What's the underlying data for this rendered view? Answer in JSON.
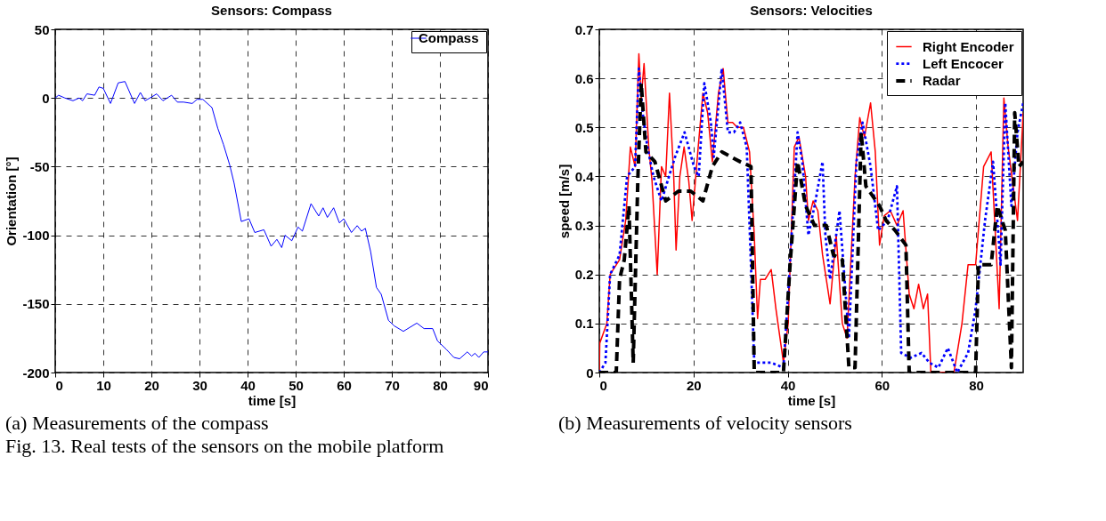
{
  "chart_data": [
    {
      "type": "line",
      "title": "Sensors: Compass",
      "xlabel": "time [s]",
      "ylabel": "Orientation [°]",
      "xlim": [
        0,
        90
      ],
      "xticks": [
        0,
        10,
        20,
        30,
        40,
        50,
        60,
        70,
        80,
        90
      ],
      "ylim": [
        -200,
        50
      ],
      "yticks": [
        -200,
        -150,
        -100,
        -50,
        0,
        50
      ],
      "grid": true,
      "legend": "top right",
      "line_style": "solid",
      "annotations": [
        "(a) Measurements of the compass",
        "Fig. 13. Real tests of the sensors on the mobile platform"
      ],
      "series": [
        {
          "name": "Compass",
          "color": "#0000ff",
          "x": [
            0,
            0.7,
            2,
            3.7,
            5,
            5.7,
            6.6,
            8.2,
            9.1,
            10,
            11.5,
            13.1,
            14.5,
            16.5,
            17.7,
            18.7,
            20.2,
            21.1,
            22.4,
            24.2,
            25.4,
            26.7,
            28.5,
            29.5,
            30.7,
            32.6,
            33.8,
            35,
            36.3,
            37.2,
            38.7,
            40.3,
            41.5,
            43.4,
            44.9,
            46.1,
            47.1,
            47.8,
            49.2,
            50.5,
            51.4,
            53.2,
            54.8,
            55.7,
            56.6,
            57.9,
            59.1,
            60,
            61.6,
            62.8,
            63.7,
            64.5,
            65.6,
            66.8,
            67.8,
            69.3,
            70.5,
            72.4,
            75.2,
            76.7,
            78.5,
            79.5,
            81.3,
            82.9,
            84.1,
            85.7,
            86.6,
            87.3,
            88.1,
            89.1,
            90
          ],
          "values": [
            0,
            2,
            0,
            -2,
            0,
            -2,
            3,
            2,
            8,
            7,
            -4,
            11,
            12,
            -4,
            4,
            -2,
            1,
            3,
            -2,
            2,
            -3,
            -3,
            -4,
            -1,
            -1,
            -7,
            -22,
            -34,
            -49,
            -62,
            -90,
            -88,
            -98,
            -96,
            -108,
            -103,
            -109,
            -100,
            -104,
            -94,
            -97,
            -77,
            -86,
            -80,
            -87,
            -80,
            -91,
            -88,
            -98,
            -93,
            -97,
            -95,
            -112,
            -138,
            -143,
            -162,
            -166,
            -170,
            -164,
            -168,
            -168,
            -177,
            -183,
            -189,
            -190,
            -185,
            -188,
            -186,
            -189,
            -185,
            -185
          ]
        }
      ]
    },
    {
      "type": "line",
      "title": "Sensors: Velocities",
      "xlabel": "time [s]",
      "ylabel": "speed [m/s]",
      "xlim": [
        0,
        90
      ],
      "xticks": [
        0,
        20,
        40,
        60,
        80
      ],
      "ylim": [
        0,
        0.7
      ],
      "yticks": [
        0,
        0.1,
        0.2,
        0.3,
        0.4,
        0.5,
        0.6,
        0.7
      ],
      "grid": true,
      "legend": "top right",
      "annotations": [
        "(b) Measurements of velocity sensors"
      ],
      "series": [
        {
          "name": "Right Encoder",
          "color": "#ff0000",
          "line_style": "solid",
          "x": [
            0,
            0.1,
            1.6,
            2.3,
            4.3,
            5.6,
            6.6,
            7.6,
            8.4,
            8.9,
            9.5,
            10.5,
            11.2,
            12.3,
            13.2,
            14.1,
            14.9,
            15.8,
            16.3,
            17.1,
            18,
            19,
            19.7,
            21,
            22,
            23,
            24,
            25.3,
            26.3,
            27.3,
            28.3,
            29.3,
            30.6,
            31.9,
            32.9,
            33.6,
            34.2,
            35.2,
            36.5,
            37.5,
            39.1,
            40.1,
            41.4,
            42.4,
            43.8,
            44.4,
            45.4,
            46.4,
            47.4,
            49,
            50.3,
            51.6,
            52.6,
            54.3,
            55.3,
            56.3,
            57.6,
            58.6,
            59.5,
            60.5,
            61.8,
            63.2,
            64.5,
            65.8,
            66.8,
            67.8,
            68.8,
            69.7,
            70.4,
            72.7,
            75.3,
            77,
            78.3,
            79.9,
            81.6,
            83.2,
            84.9,
            85.9,
            86.8,
            88.8,
            90
          ],
          "values": [
            0,
            0.06,
            0.1,
            0.2,
            0.23,
            0.31,
            0.46,
            0.42,
            0.65,
            0.56,
            0.63,
            0.46,
            0.39,
            0.2,
            0.42,
            0.4,
            0.57,
            0.4,
            0.25,
            0.4,
            0.46,
            0.39,
            0.31,
            0.46,
            0.57,
            0.53,
            0.43,
            0.57,
            0.62,
            0.51,
            0.51,
            0.5,
            0.5,
            0.45,
            0.28,
            0.11,
            0.19,
            0.19,
            0.21,
            0.13,
            0.02,
            0.1,
            0.46,
            0.48,
            0.4,
            0.31,
            0.35,
            0.33,
            0.24,
            0.14,
            0.28,
            0.1,
            0.07,
            0.4,
            0.52,
            0.48,
            0.55,
            0.45,
            0.26,
            0.32,
            0.33,
            0.3,
            0.33,
            0.16,
            0.13,
            0.18,
            0.13,
            0.16,
            0,
            0,
            0,
            0.1,
            0.22,
            0.22,
            0.42,
            0.45,
            0.13,
            0.56,
            0.46,
            0.31,
            0.53
          ]
        },
        {
          "name": "Left Encocer",
          "color": "#0000ff",
          "line_style": "dotted",
          "x": [
            0,
            1.3,
            2.3,
            4.3,
            5.9,
            7.6,
            8.4,
            9.2,
            10.2,
            11.5,
            13.2,
            14.8,
            16.1,
            18.1,
            20.1,
            21.1,
            22.3,
            23.7,
            24.3,
            26,
            27.3,
            28.6,
            29.9,
            31.3,
            32.2,
            32.9,
            36.5,
            39.1,
            40.1,
            42.1,
            43.1,
            44.4,
            45.7,
            47.4,
            48,
            49,
            51,
            53,
            54.6,
            55.9,
            57.6,
            59.2,
            61.2,
            63.2,
            64.1,
            66.1,
            68.4,
            70.1,
            72,
            74,
            76,
            78.3,
            79.9,
            81.9,
            83.6,
            85.2,
            86.2,
            87.5,
            88.8,
            90
          ],
          "values": [
            0,
            0.02,
            0.2,
            0.24,
            0.4,
            0.42,
            0.62,
            0.53,
            0.46,
            0.4,
            0.35,
            0.4,
            0.44,
            0.49,
            0.42,
            0.4,
            0.59,
            0.51,
            0.44,
            0.62,
            0.49,
            0.49,
            0.51,
            0.46,
            0.22,
            0.02,
            0.02,
            0.01,
            0.16,
            0.49,
            0.43,
            0.28,
            0.34,
            0.43,
            0.28,
            0.19,
            0.33,
            0.07,
            0.43,
            0.51,
            0.42,
            0.29,
            0.31,
            0.38,
            0.04,
            0.03,
            0.04,
            0.02,
            0.01,
            0.05,
            0,
            0.04,
            0.13,
            0.31,
            0.43,
            0.22,
            0.55,
            0.34,
            0.49,
            0.55
          ]
        },
        {
          "name": "Radar",
          "color": "#000000",
          "line_style": "dashed",
          "x": [
            0,
            3.6,
            4.3,
            5.3,
            6.3,
            7.2,
            8.2,
            8.9,
            9.9,
            11.8,
            14.1,
            16.8,
            19.4,
            22,
            24,
            26,
            29.9,
            32.2,
            32.9,
            39.1,
            40.5,
            42.1,
            43.8,
            45.7,
            48.2,
            49.7,
            51.6,
            53,
            54.3,
            55.6,
            56.6,
            59.5,
            60.9,
            62.8,
            65.1,
            65.8,
            79.9,
            80.5,
            83.2,
            84.5,
            86.2,
            87.5,
            88.2,
            89.1,
            90
          ],
          "values": [
            0,
            0,
            0.19,
            0.23,
            0.34,
            0.02,
            0.4,
            0.59,
            0.45,
            0.43,
            0.35,
            0.37,
            0.37,
            0.35,
            0.42,
            0.45,
            0.43,
            0.42,
            0,
            0,
            0.22,
            0.43,
            0.34,
            0.3,
            0.3,
            0.24,
            0.23,
            0.01,
            0.01,
            0.49,
            0.38,
            0.34,
            0.31,
            0.29,
            0.26,
            0,
            0,
            0.22,
            0.22,
            0.34,
            0.29,
            0.01,
            0.53,
            0.42,
            0.43
          ]
        }
      ]
    }
  ]
}
